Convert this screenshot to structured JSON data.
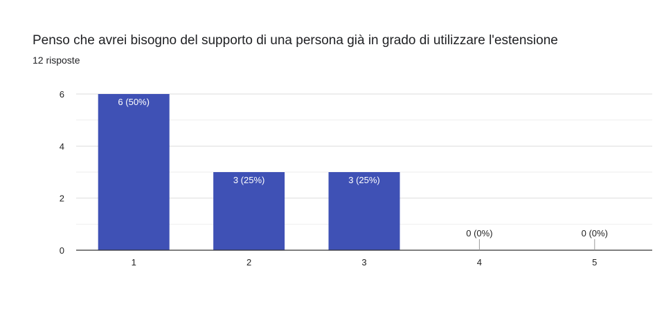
{
  "header": {
    "title": "Penso che avrei bisogno del supporto di una persona già in grado di utilizzare l'estensione",
    "subtitle": "12 risposte"
  },
  "colors": {
    "bar": "#3f51b5",
    "label_inside": "#ffffff",
    "label_outside": "#222222",
    "grid": "#e6e6e6",
    "axis": "#333333"
  },
  "chart_data": {
    "type": "bar",
    "title": "Penso che avrei bisogno del supporto di una persona già in grado di utilizzare l'estensione",
    "subtitle": "12 risposte",
    "categories": [
      "1",
      "2",
      "3",
      "4",
      "5"
    ],
    "values": [
      6,
      3,
      3,
      0,
      0
    ],
    "data_labels": [
      "6 (50%)",
      "3 (25%)",
      "3 (25%)",
      "0 (0%)",
      "0 (0%)"
    ],
    "y_ticks": [
      "0",
      "2",
      "4",
      "6"
    ],
    "ylim": [
      0,
      6
    ],
    "xlabel": "",
    "ylabel": "",
    "grid": true,
    "legend": "none"
  }
}
